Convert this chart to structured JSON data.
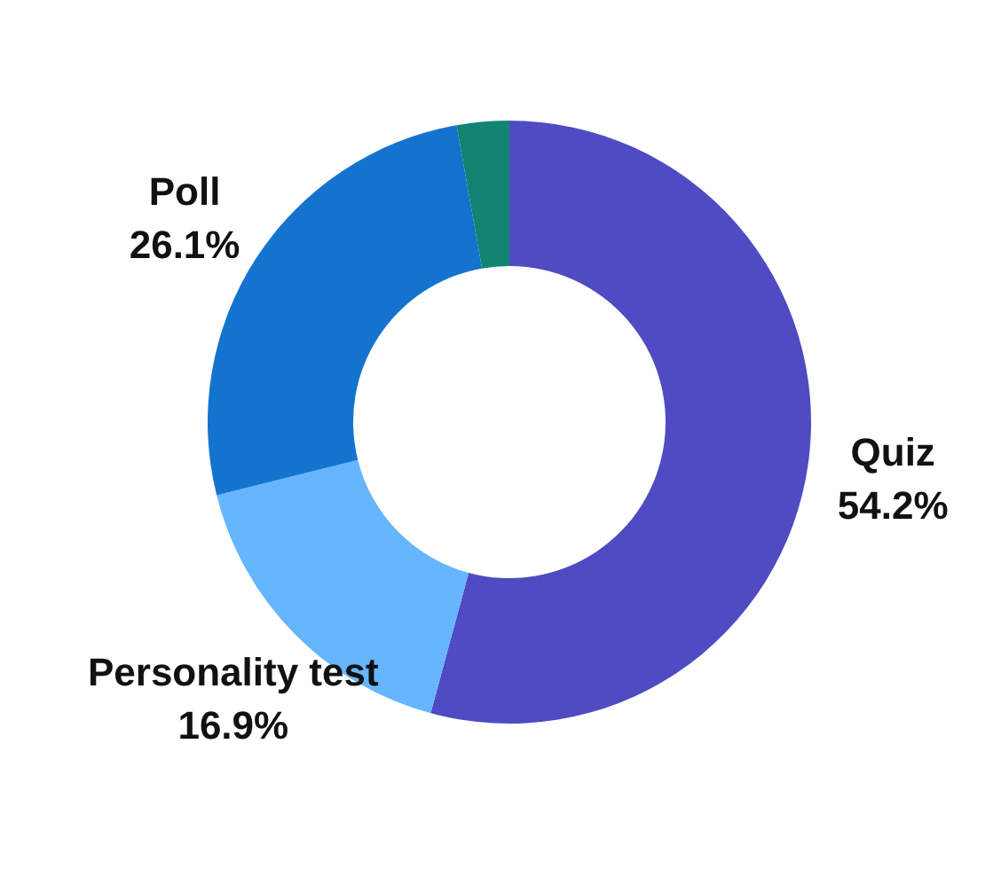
{
  "chart_data": {
    "type": "donut",
    "categories": [
      "Quiz",
      "Personality test",
      "Poll",
      null
    ],
    "values": [
      54.2,
      16.9,
      26.1,
      2.8
    ],
    "colors": [
      "#4f4bc2",
      "#66b5ff",
      "#1473cf",
      "#128471"
    ],
    "value_labels": [
      "54.2%",
      "16.9%",
      "26.1%",
      null
    ]
  }
}
